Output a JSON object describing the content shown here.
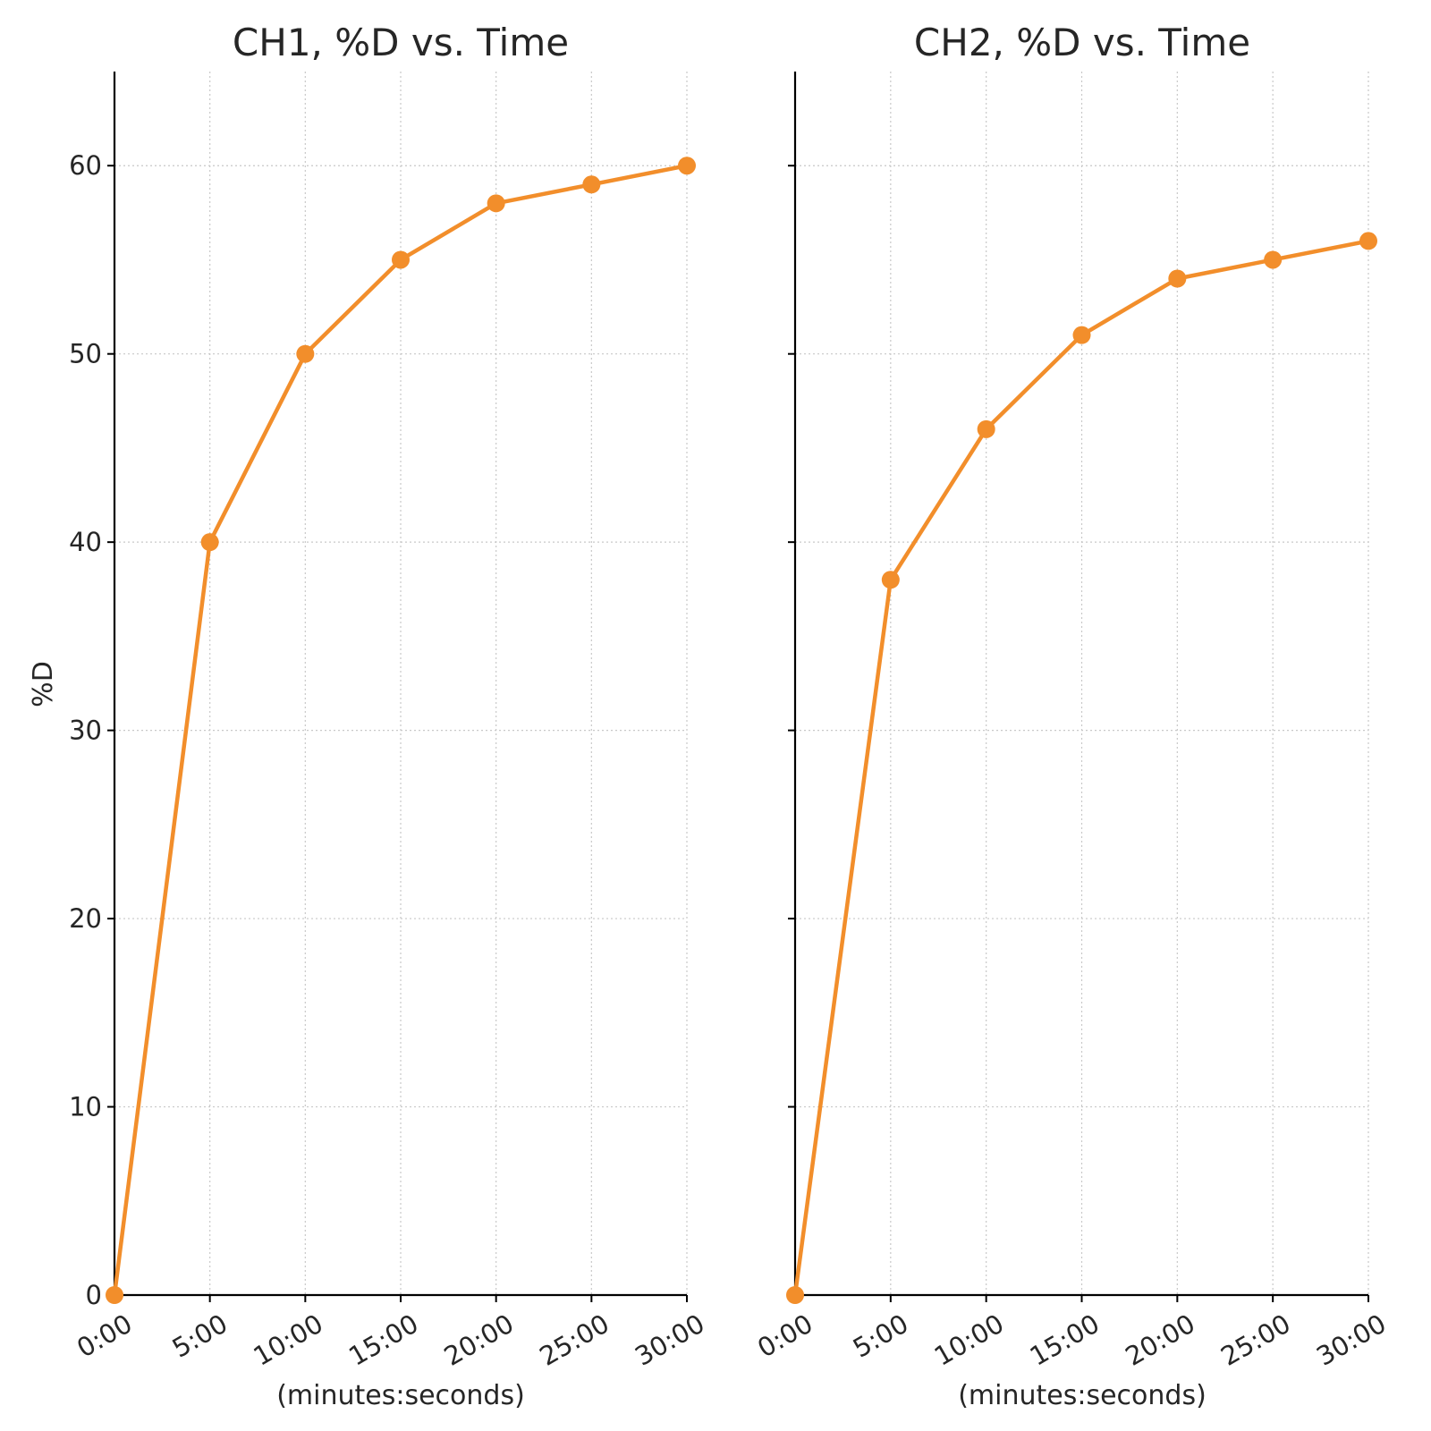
{
  "colors": {
    "series": "#f28e2b"
  },
  "chart_data": [
    {
      "type": "line",
      "title": "CH1, %D vs. Time",
      "xlabel": "(minutes:seconds)",
      "ylabel": "%D",
      "categories": [
        "0:00",
        "5:00",
        "10:00",
        "15:00",
        "20:00",
        "25:00",
        "30:00"
      ],
      "x": [
        0,
        5,
        10,
        15,
        20,
        25,
        30
      ],
      "values": [
        0,
        40,
        50,
        55,
        58,
        59,
        60
      ],
      "xlim": [
        0,
        30
      ],
      "ylim": [
        0,
        65
      ],
      "yticks": [
        0,
        10,
        20,
        30,
        40,
        50,
        60
      ],
      "grid": true
    },
    {
      "type": "line",
      "title": "CH2, %D vs. Time",
      "xlabel": "(minutes:seconds)",
      "ylabel": "",
      "categories": [
        "0:00",
        "5:00",
        "10:00",
        "15:00",
        "20:00",
        "25:00",
        "30:00"
      ],
      "x": [
        0,
        5,
        10,
        15,
        20,
        25,
        30
      ],
      "values": [
        0,
        38,
        46,
        51,
        54,
        55,
        56
      ],
      "xlim": [
        0,
        30
      ],
      "ylim": [
        0,
        65
      ],
      "yticks": [
        0,
        10,
        20,
        30,
        40,
        50,
        60
      ],
      "grid": true
    }
  ]
}
